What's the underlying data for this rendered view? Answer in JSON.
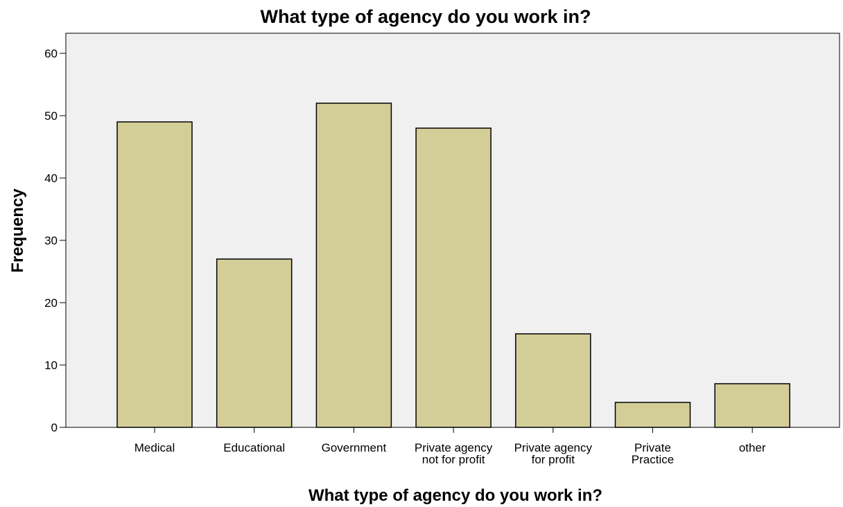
{
  "chart_data": {
    "type": "bar",
    "title": "What type of agency do you work in?",
    "xlabel": "What type of agency do you work in?",
    "ylabel": "Frequency",
    "categories": [
      [
        "Medical"
      ],
      [
        "Educational"
      ],
      [
        "Government"
      ],
      [
        "Private agency",
        "not for profit"
      ],
      [
        "Private agency",
        "for profit"
      ],
      [
        "Private",
        "Practice"
      ],
      [
        "other"
      ]
    ],
    "values": [
      49,
      27,
      52,
      48,
      15,
      4,
      7
    ],
    "ylim": [
      0,
      60
    ],
    "yticks": [
      0,
      10,
      20,
      30,
      40,
      50,
      60
    ],
    "grid": false,
    "colors": {
      "plot_background": "#f0f0f0",
      "bar_fill": "#d3cd98",
      "bar_stroke": "#000000"
    }
  }
}
